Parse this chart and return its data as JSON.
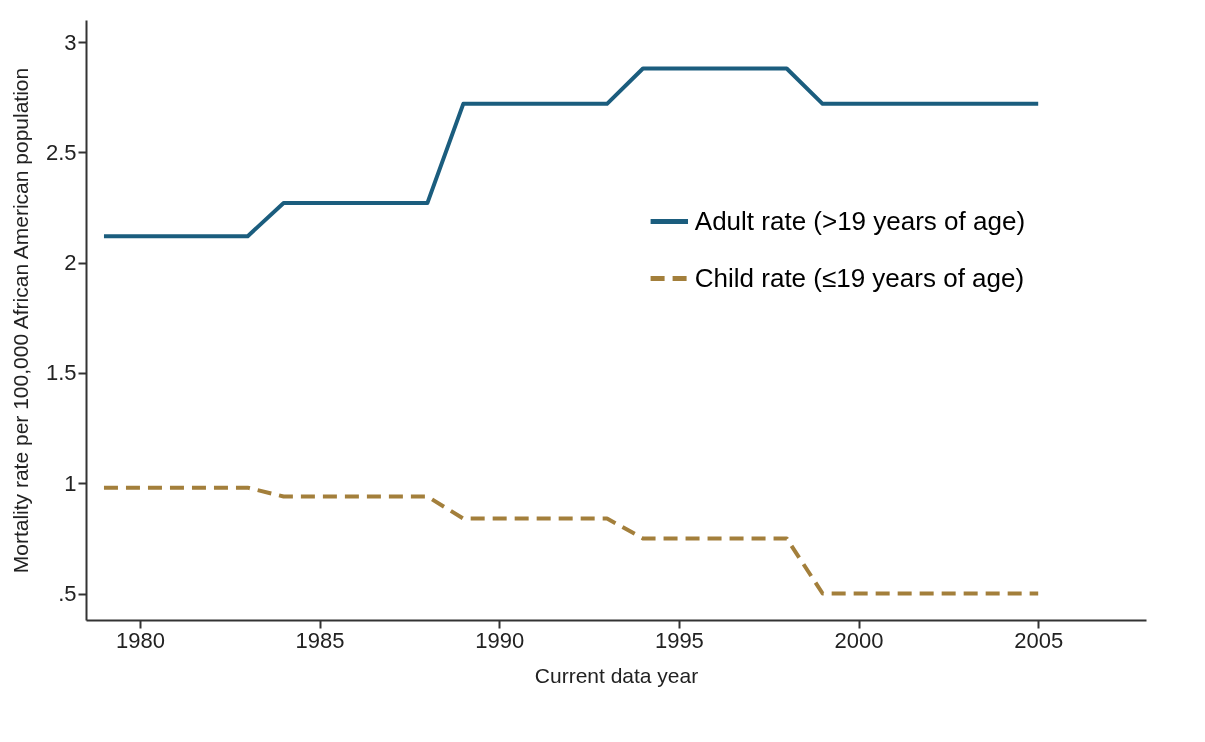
{
  "chart_data": {
    "type": "line",
    "xlabel": "Current data year",
    "ylabel": "Mortality rate per 100,000 African American population",
    "xlim": [
      1978.5,
      2008
    ],
    "xticks": [
      1980,
      1985,
      1990,
      1995,
      2000,
      2005
    ],
    "ylim": [
      0.38,
      3.1
    ],
    "yticks": [
      {
        "value": 0.5,
        "label": ".5"
      },
      1,
      1.5,
      2,
      2.5,
      3
    ],
    "grid": false,
    "legend": "right",
    "marker": "none",
    "series": [
      {
        "name": "Adult rate (>19 years of age)",
        "color": "#1b5d7e",
        "line_style": "solid",
        "x": [
          1979,
          1983,
          1984,
          1988,
          1989,
          1993,
          1994,
          1998,
          1999,
          2005
        ],
        "values": [
          2.12,
          2.12,
          2.27,
          2.27,
          2.72,
          2.72,
          2.88,
          2.88,
          2.72,
          2.72
        ]
      },
      {
        "name": "Child rate (≤19 years of age)",
        "color": "#a37f3b",
        "line_style": "dashed",
        "x": [
          1979,
          1983,
          1984,
          1988,
          1989,
          1993,
          1994,
          1998,
          1999,
          2005
        ],
        "values": [
          0.98,
          0.98,
          0.94,
          0.94,
          0.84,
          0.84,
          0.75,
          0.75,
          0.5,
          0.5
        ]
      }
    ]
  }
}
